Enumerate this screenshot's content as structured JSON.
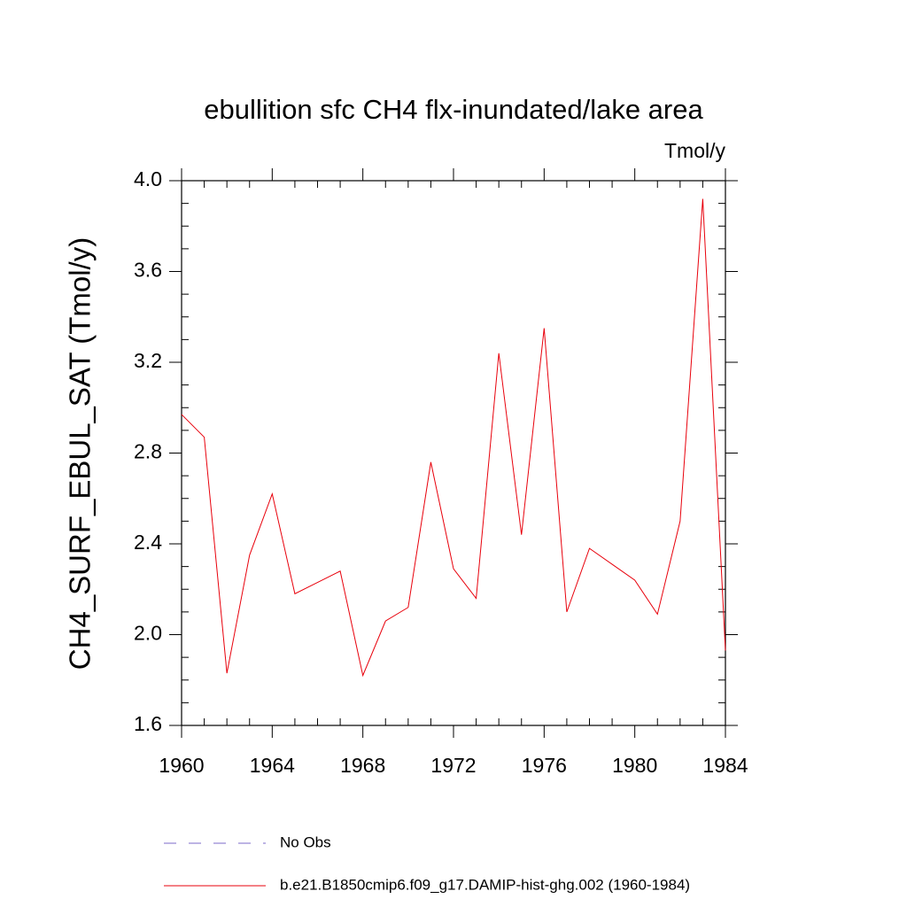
{
  "chart_data": {
    "type": "line",
    "title": "ebullition sfc CH4 flx-inundated/lake area",
    "units": "Tmol/y",
    "y_label": "CH4_SURF_EBUL_SAT  (Tmol/y)",
    "x": [
      1960,
      1961,
      1962,
      1963,
      1964,
      1965,
      1966,
      1967,
      1968,
      1969,
      1970,
      1971,
      1972,
      1973,
      1974,
      1975,
      1976,
      1977,
      1978,
      1979,
      1980,
      1981,
      1982,
      1983,
      1984
    ],
    "series": [
      {
        "name": "b.e21.B1850cmip6.f09_g17.DAMIP-hist-ghg.002 (1960-1984)",
        "color": "#e8000b",
        "values": [
          2.97,
          2.87,
          1.83,
          2.35,
          2.62,
          2.18,
          2.23,
          2.28,
          1.82,
          2.06,
          2.12,
          2.76,
          2.29,
          2.16,
          3.24,
          2.44,
          3.35,
          2.1,
          2.38,
          2.31,
          2.24,
          2.09,
          2.5,
          3.92,
          1.93
        ]
      }
    ],
    "extra_legend": [
      {
        "name": "No Obs",
        "color": "#7b68c8",
        "dashed": true
      }
    ],
    "xlim": [
      1960,
      1984
    ],
    "xticks": [
      1960,
      1964,
      1968,
      1972,
      1976,
      1980,
      1984
    ],
    "ylim": [
      1.6,
      4.0
    ],
    "yticks": [
      {
        "value": 1.6,
        "label": "1.6"
      },
      {
        "value": 2.0,
        "label": "2.0"
      },
      {
        "value": 2.4,
        "label": "2.4"
      },
      {
        "value": 2.8,
        "label": "2.8"
      },
      {
        "value": 3.2,
        "label": "3.2"
      },
      {
        "value": 3.6,
        "label": "3.6"
      },
      {
        "value": 4.0,
        "label": "4.0"
      }
    ]
  }
}
